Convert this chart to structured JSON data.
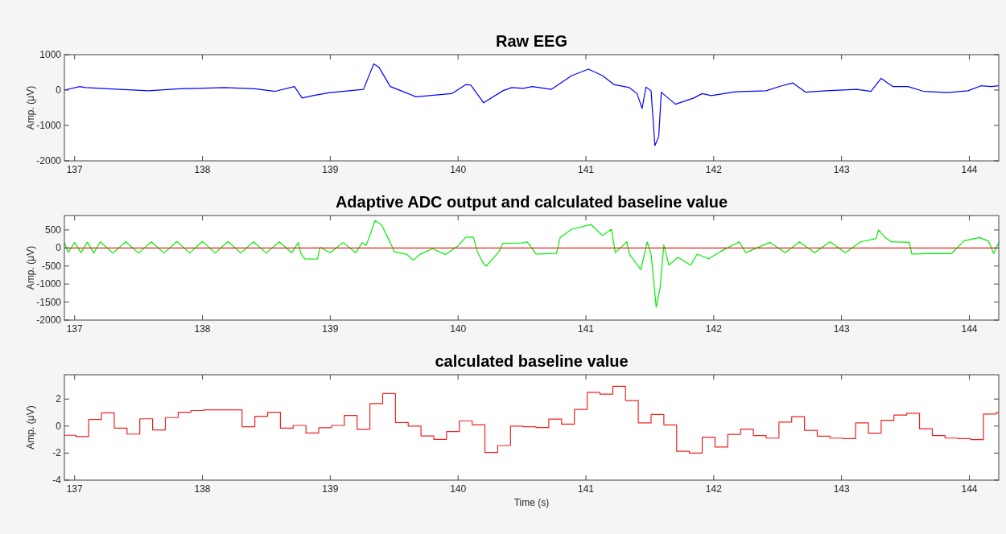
{
  "chart_data": [
    {
      "type": "line",
      "title": "Raw EEG",
      "ylabel": "Amp. (μV)",
      "xlim": [
        136.92,
        144.23
      ],
      "xticks": [
        137,
        138,
        139,
        140,
        141,
        142,
        143,
        144
      ],
      "ylim": [
        -2000,
        1000
      ],
      "yticks": [
        -2000,
        -1000,
        0,
        1000
      ],
      "series": [
        {
          "color": "#0000ff",
          "x": [
            136.92,
            137.04,
            137.085,
            137.35,
            137.58,
            137.82,
            138.17,
            138.41,
            138.57,
            138.72,
            138.78,
            138.88,
            139.0,
            139.26,
            139.34,
            139.38,
            139.47,
            139.59,
            139.67,
            139.95,
            140.06,
            140.1,
            140.2,
            140.35,
            140.42,
            140.51,
            140.58,
            140.73,
            140.89,
            141.02,
            141.13,
            141.22,
            141.34,
            141.4,
            141.44,
            141.47,
            141.51,
            141.54,
            141.57,
            141.59,
            141.7,
            141.84,
            141.91,
            141.98,
            142.17,
            142.41,
            142.53,
            142.62,
            142.72,
            142.88,
            143.12,
            143.23,
            143.31,
            143.4,
            143.52,
            143.64,
            143.83,
            143.99,
            144.09,
            144.17,
            144.23
          ],
          "values": [
            0,
            100,
            70,
            20,
            -20,
            35,
            70,
            35,
            -35,
            100,
            -225,
            -145,
            -70,
            20,
            740,
            650,
            100,
            -70,
            -190,
            -100,
            155,
            140,
            -360,
            -20,
            70,
            50,
            100,
            20,
            410,
            590,
            410,
            155,
            70,
            -100,
            -520,
            85,
            -20,
            -1570,
            -1310,
            -60,
            -400,
            -230,
            -100,
            -155,
            -50,
            -20,
            120,
            200,
            -60,
            -20,
            20,
            -35,
            330,
            100,
            100,
            -35,
            -70,
            -20,
            120,
            100,
            120
          ]
        }
      ]
    },
    {
      "type": "line",
      "title": "Adaptive ADC output and calculated baseline value",
      "ylabel": "Amp. (μV)",
      "xlim": [
        136.92,
        144.23
      ],
      "xticks": [
        137,
        138,
        139,
        140,
        141,
        142,
        143,
        144
      ],
      "ylim": [
        -2000,
        900
      ],
      "yticks": [
        -2000,
        -1500,
        -1000,
        -500,
        0,
        500
      ],
      "series": [
        {
          "color": "#00ee00",
          "x": [
            136.92,
            136.95,
            137.0,
            137.05,
            137.1,
            137.15,
            137.2,
            137.3,
            137.4,
            137.5,
            137.6,
            137.7,
            137.8,
            137.9,
            138.0,
            138.1,
            138.2,
            138.3,
            138.4,
            138.5,
            138.6,
            138.7,
            138.75,
            138.77,
            138.8,
            138.9,
            138.92,
            139.0,
            139.1,
            139.2,
            139.25,
            139.28,
            139.3,
            139.35,
            139.4,
            139.47,
            139.5,
            139.6,
            139.65,
            139.7,
            139.8,
            139.9,
            140.0,
            140.06,
            140.12,
            140.15,
            140.2,
            140.22,
            140.28,
            140.32,
            140.35,
            140.5,
            140.54,
            140.61,
            140.77,
            140.8,
            140.89,
            141.04,
            141.13,
            141.2,
            141.23,
            141.32,
            141.34,
            141.43,
            141.48,
            141.51,
            141.55,
            141.58,
            141.61,
            141.65,
            141.72,
            141.82,
            141.87,
            141.96,
            142.06,
            142.2,
            142.25,
            142.44,
            142.56,
            142.67,
            142.79,
            142.91,
            143.03,
            143.15,
            143.27,
            143.29,
            143.34,
            143.39,
            143.53,
            143.55,
            143.74,
            143.86,
            143.96,
            144.08,
            144.15,
            144.19,
            144.23
          ],
          "values": [
            150,
            -120,
            150,
            -130,
            160,
            -140,
            170,
            -140,
            170,
            -140,
            170,
            -140,
            180,
            -140,
            180,
            -140,
            180,
            -140,
            170,
            -140,
            170,
            -130,
            150,
            -150,
            -300,
            -310,
            20,
            -130,
            150,
            -130,
            150,
            70,
            250,
            760,
            650,
            150,
            -100,
            -180,
            -340,
            -180,
            -20,
            -180,
            60,
            300,
            300,
            -100,
            -440,
            -500,
            -270,
            -100,
            130,
            140,
            170,
            -170,
            -150,
            300,
            520,
            650,
            345,
            520,
            -130,
            170,
            -170,
            -600,
            170,
            -170,
            -1640,
            -1120,
            85,
            -475,
            -260,
            -475,
            -170,
            -300,
            -85,
            170,
            -130,
            155,
            -130,
            170,
            -130,
            170,
            -130,
            170,
            260,
            500,
            290,
            170,
            155,
            -170,
            -150,
            -155,
            200,
            290,
            190,
            -155,
            150
          ]
        },
        {
          "color": "#ee2222",
          "x": [
            136.92,
            144.23
          ],
          "values": [
            0,
            0
          ]
        }
      ]
    },
    {
      "type": "step",
      "title": "calculated baseline value",
      "xlabel": "Time (s)",
      "ylabel": "Amp. (μV)",
      "xlim": [
        136.92,
        144.23
      ],
      "xticks": [
        137,
        138,
        139,
        140,
        141,
        142,
        143,
        144
      ],
      "ylim": [
        -4,
        3.8
      ],
      "yticks": [
        -4,
        -2,
        0,
        2
      ],
      "series": [
        {
          "color": "#ee2222",
          "x": [
            136.92,
            137.01,
            137.11,
            137.21,
            137.31,
            137.41,
            137.51,
            137.61,
            137.71,
            137.81,
            137.91,
            138.01,
            138.11,
            138.21,
            138.31,
            138.41,
            138.51,
            138.61,
            138.71,
            138.81,
            138.91,
            139.01,
            139.11,
            139.21,
            139.31,
            139.41,
            139.51,
            139.61,
            139.71,
            139.81,
            139.91,
            140.01,
            140.11,
            140.21,
            140.31,
            140.41,
            140.51,
            140.61,
            140.71,
            140.81,
            140.91,
            141.01,
            141.11,
            141.21,
            141.31,
            141.41,
            141.51,
            141.61,
            141.71,
            141.81,
            141.91,
            142.01,
            142.11,
            142.21,
            142.31,
            142.41,
            142.51,
            142.61,
            142.71,
            142.81,
            142.91,
            143.01,
            143.11,
            143.21,
            143.31,
            143.41,
            143.51,
            143.61,
            143.71,
            143.81,
            143.91,
            144.01,
            144.11,
            144.21,
            144.23
          ],
          "values": [
            -0.68,
            -0.78,
            0.49,
            0.98,
            -0.15,
            -0.59,
            0.54,
            -0.29,
            0.63,
            1.02,
            1.15,
            1.2,
            1.2,
            1.2,
            -0.05,
            0.73,
            1.02,
            -0.15,
            0.05,
            -0.51,
            -0.12,
            0.05,
            0.78,
            -0.24,
            1.66,
            2.41,
            0.27,
            0.0,
            -0.73,
            -0.98,
            -0.41,
            0.39,
            0.1,
            -1.95,
            -1.44,
            0.0,
            -0.05,
            -0.11,
            0.52,
            0.14,
            1.23,
            2.5,
            2.36,
            2.95,
            1.89,
            0.23,
            0.86,
            0.09,
            -1.86,
            -2.0,
            -0.82,
            -1.55,
            -0.61,
            -0.23,
            -0.7,
            -0.89,
            0.3,
            0.7,
            -0.32,
            -0.75,
            -0.89,
            -0.93,
            0.23,
            -0.52,
            0.43,
            0.82,
            0.95,
            -0.2,
            -0.7,
            -0.89,
            -0.93,
            -1.0,
            0.89,
            1.0,
            1.0
          ]
        }
      ]
    }
  ]
}
